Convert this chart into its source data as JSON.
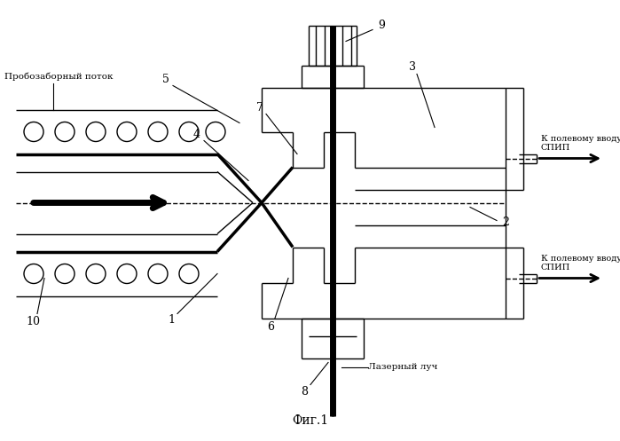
{
  "fig_width": 6.99,
  "fig_height": 4.97,
  "dpi": 100,
  "bg_color": "#ffffff",
  "title": "Фиг.1",
  "label_probozabornyi": "Пробозаборный поток",
  "label_lazernyi": "Лазерный луч",
  "label_spip_top": "К полевому вводу\nСПИП",
  "label_spip_bot": "К полевому вводу\nСПИП"
}
